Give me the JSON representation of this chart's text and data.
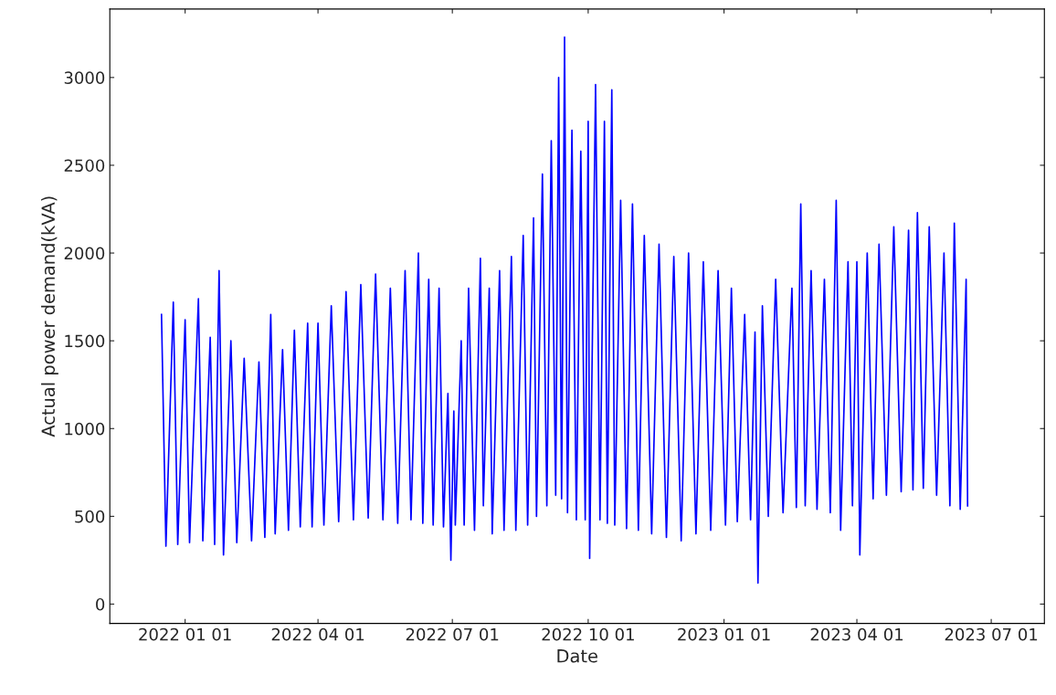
{
  "chart_data": {
    "type": "line",
    "xlabel": "Date",
    "ylabel": "Actual power demand(kVA)",
    "xlim": [
      "2021-11-11",
      "2023-08-06"
    ],
    "ylim": [
      -110,
      3390
    ],
    "xticks": [
      {
        "value": "2022-01-01",
        "label": "2022 01 01"
      },
      {
        "value": "2022-04-01",
        "label": "2022 04 01"
      },
      {
        "value": "2022-07-01",
        "label": "2022 07 01"
      },
      {
        "value": "2022-10-01",
        "label": "2022 10 01"
      },
      {
        "value": "2023-01-01",
        "label": "2023 01 01"
      },
      {
        "value": "2023-04-01",
        "label": "2023 04 01"
      },
      {
        "value": "2023-07-01",
        "label": "2023 07 01"
      }
    ],
    "yticks": [
      0,
      500,
      1000,
      1500,
      2000,
      2500,
      3000
    ],
    "grid": false,
    "marker": "none",
    "line_style": "solid",
    "series": [
      {
        "color": "#0000ff",
        "x": [
          "2021-12-16",
          "2021-12-19",
          "2021-12-24",
          "2021-12-27",
          "2022-01-01",
          "2022-01-04",
          "2022-01-10",
          "2022-01-13",
          "2022-01-18",
          "2022-01-21",
          "2022-01-24",
          "2022-01-27",
          "2022-02-01",
          "2022-02-05",
          "2022-02-10",
          "2022-02-15",
          "2022-02-20",
          "2022-02-24",
          "2022-02-28",
          "2022-03-03",
          "2022-03-08",
          "2022-03-12",
          "2022-03-16",
          "2022-03-20",
          "2022-03-25",
          "2022-03-28",
          "2022-04-01",
          "2022-04-05",
          "2022-04-10",
          "2022-04-15",
          "2022-04-20",
          "2022-04-25",
          "2022-04-30",
          "2022-05-05",
          "2022-05-10",
          "2022-05-15",
          "2022-05-20",
          "2022-05-25",
          "2022-05-30",
          "2022-06-03",
          "2022-06-08",
          "2022-06-11",
          "2022-06-15",
          "2022-06-18",
          "2022-06-22",
          "2022-06-25",
          "2022-06-28",
          "2022-06-30",
          "2022-07-02",
          "2022-07-03",
          "2022-07-07",
          "2022-07-09",
          "2022-07-12",
          "2022-07-16",
          "2022-07-20",
          "2022-07-22",
          "2022-07-26",
          "2022-07-28",
          "2022-08-02",
          "2022-08-05",
          "2022-08-10",
          "2022-08-13",
          "2022-08-18",
          "2022-08-21",
          "2022-08-25",
          "2022-08-27",
          "2022-08-31",
          "2022-09-03",
          "2022-09-06",
          "2022-09-09",
          "2022-09-11",
          "2022-09-13",
          "2022-09-15",
          "2022-09-17",
          "2022-09-20",
          "2022-09-23",
          "2022-09-26",
          "2022-09-29",
          "2022-10-01",
          "2022-10-02",
          "2022-10-06",
          "2022-10-09",
          "2022-10-12",
          "2022-10-14",
          "2022-10-17",
          "2022-10-19",
          "2022-10-23",
          "2022-10-27",
          "2022-10-31",
          "2022-11-04",
          "2022-11-08",
          "2022-11-13",
          "2022-11-18",
          "2022-11-23",
          "2022-11-28",
          "2022-12-03",
          "2022-12-08",
          "2022-12-13",
          "2022-12-18",
          "2022-12-23",
          "2022-12-28",
          "2023-01-02",
          "2023-01-06",
          "2023-01-10",
          "2023-01-15",
          "2023-01-19",
          "2023-01-22",
          "2023-01-24",
          "2023-01-27",
          "2023-01-31",
          "2023-02-05",
          "2023-02-10",
          "2023-02-16",
          "2023-02-19",
          "2023-02-22",
          "2023-02-25",
          "2023-03-01",
          "2023-03-05",
          "2023-03-10",
          "2023-03-14",
          "2023-03-18",
          "2023-03-21",
          "2023-03-26",
          "2023-03-29",
          "2023-04-01",
          "2023-04-03",
          "2023-04-08",
          "2023-04-12",
          "2023-04-16",
          "2023-04-21",
          "2023-04-26",
          "2023-05-01",
          "2023-05-06",
          "2023-05-09",
          "2023-05-12",
          "2023-05-16",
          "2023-05-20",
          "2023-05-25",
          "2023-05-30",
          "2023-06-03",
          "2023-06-06",
          "2023-06-10",
          "2023-06-14",
          "2023-06-15"
        ],
        "values": [
          1650,
          330,
          1720,
          340,
          1620,
          350,
          1740,
          360,
          1520,
          340,
          1900,
          280,
          1500,
          350,
          1400,
          360,
          1380,
          380,
          1650,
          400,
          1450,
          420,
          1560,
          440,
          1600,
          440,
          1600,
          450,
          1700,
          470,
          1780,
          480,
          1820,
          490,
          1880,
          480,
          1800,
          460,
          1900,
          480,
          2000,
          460,
          1850,
          450,
          1800,
          440,
          1200,
          250,
          1100,
          450,
          1500,
          450,
          1800,
          420,
          1970,
          560,
          1800,
          400,
          1900,
          420,
          1980,
          420,
          2100,
          450,
          2200,
          500,
          2450,
          560,
          2640,
          620,
          3000,
          600,
          3230,
          520,
          2700,
          480,
          2580,
          480,
          2750,
          260,
          2960,
          480,
          2750,
          460,
          2930,
          450,
          2300,
          430,
          2280,
          420,
          2100,
          400,
          2050,
          380,
          1980,
          360,
          2000,
          400,
          1950,
          420,
          1900,
          450,
          1800,
          470,
          1650,
          480,
          1550,
          120,
          1700,
          500,
          1850,
          520,
          1800,
          550,
          2280,
          560,
          1900,
          540,
          1850,
          520,
          2300,
          420,
          1950,
          560,
          1950,
          280,
          2000,
          600,
          2050,
          620,
          2150,
          640,
          2130,
          650,
          2230,
          660,
          2150,
          620,
          2000,
          560,
          2170,
          540,
          1850,
          560
        ]
      }
    ]
  }
}
